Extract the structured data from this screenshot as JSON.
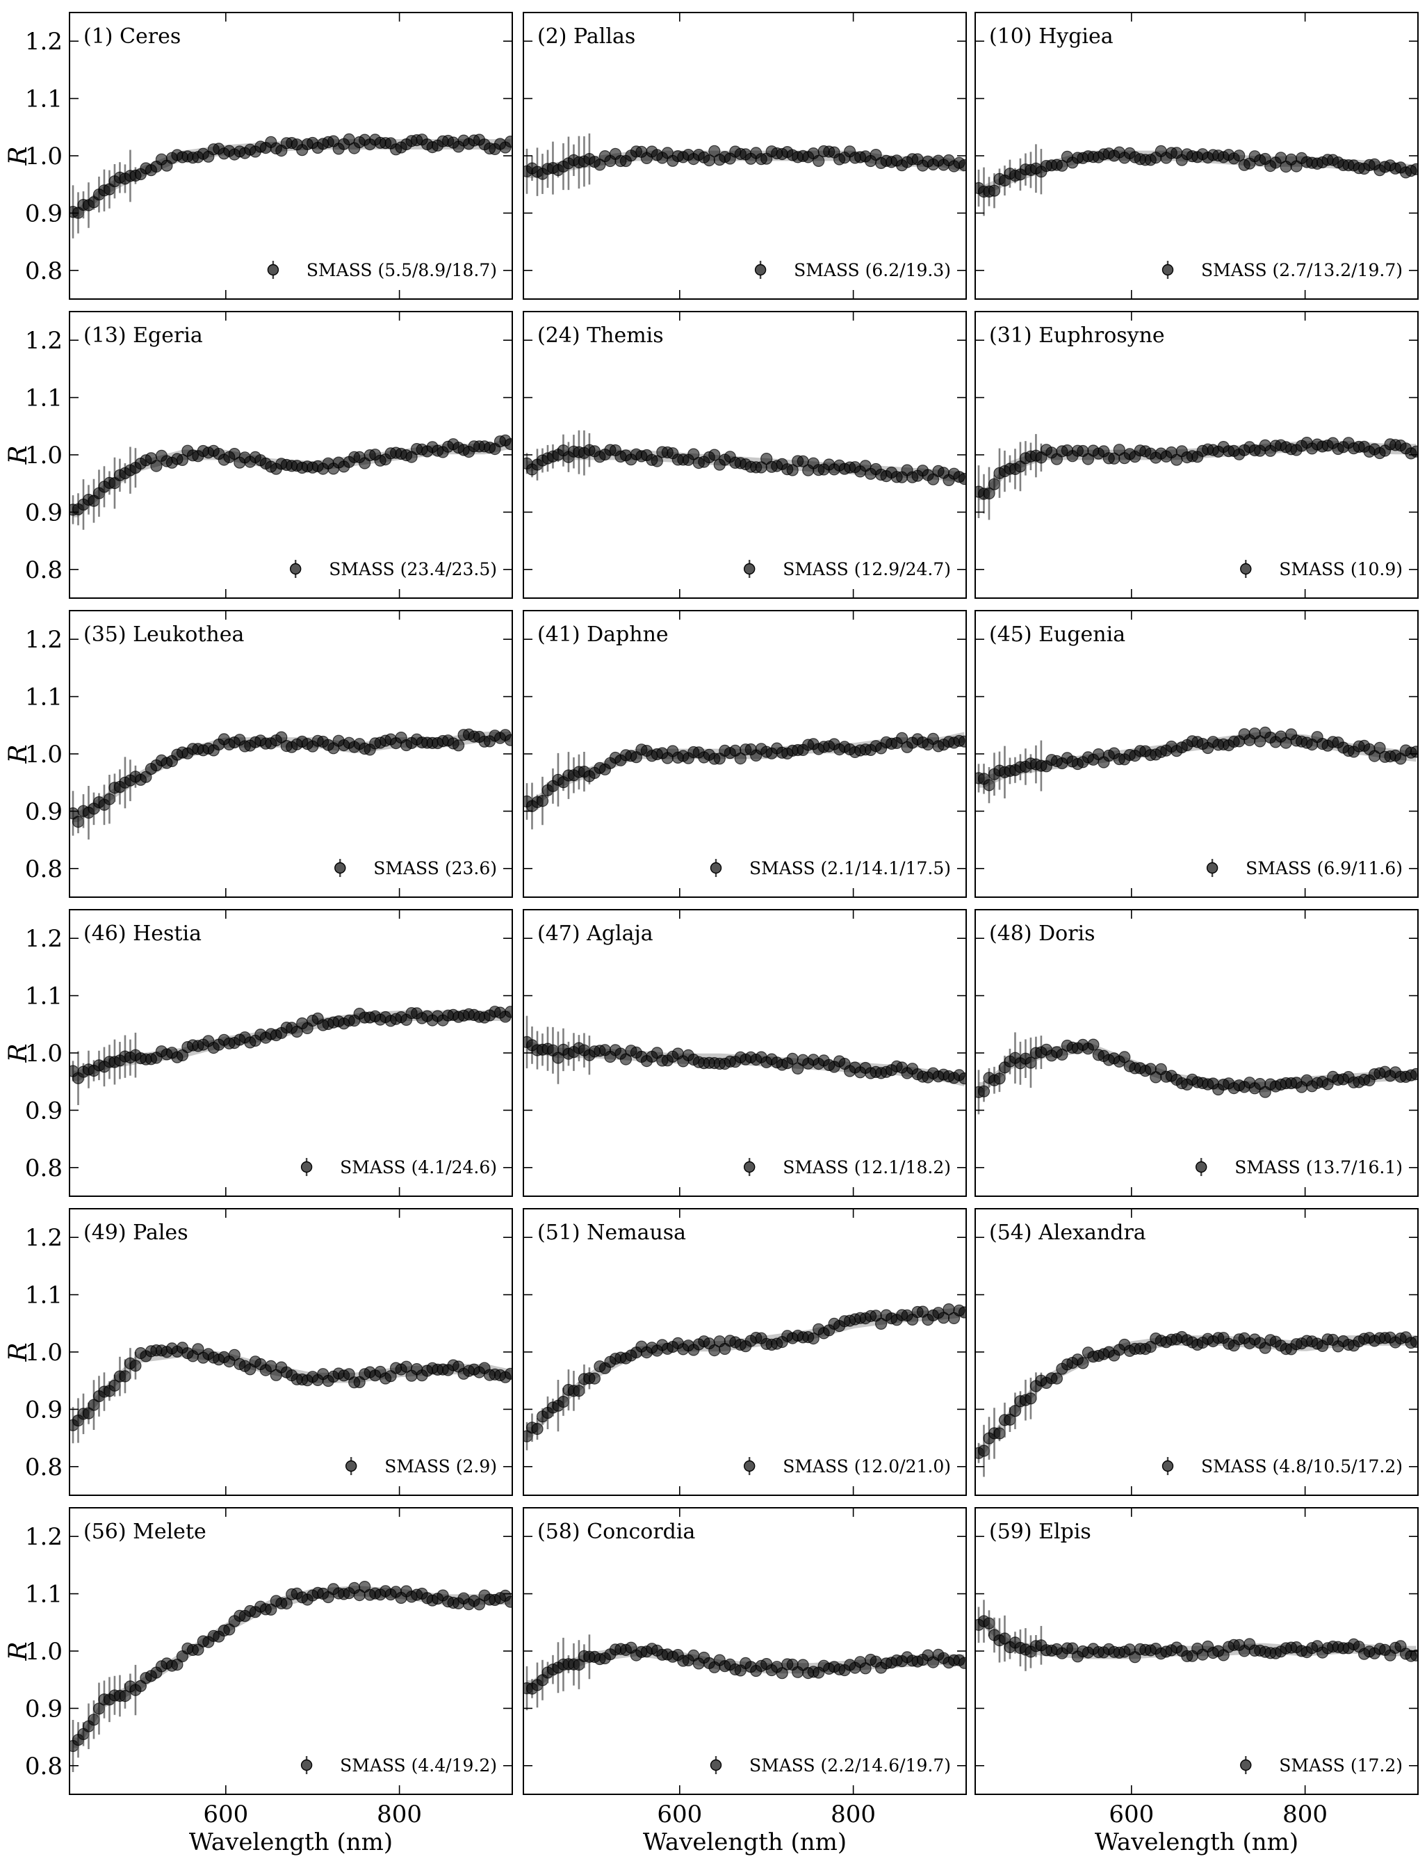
{
  "figure": {
    "ylabel": "R",
    "xlabel": "Wavelength (nm)",
    "layout": "6 rows x 3 columns",
    "colors": {
      "points": "#3a3a3a",
      "band": "#9a9a9a",
      "errorbars": "#555555"
    }
  },
  "chart_data": [
    {
      "type": "scatter",
      "title": "(1) Ceres",
      "legend": "SMASS (5.5/8.9/18.7)",
      "legend_position": "bottom-right",
      "xlim": [
        420,
        930
      ],
      "ylim": [
        0.75,
        1.25
      ],
      "xticks": [
        600,
        800
      ],
      "yticks": [
        0.8,
        0.9,
        1.0,
        1.1,
        1.2
      ],
      "x": [
        430,
        460,
        500,
        550,
        600,
        650,
        700,
        750,
        800,
        850,
        900,
        930
      ],
      "y": [
        0.9,
        0.94,
        0.97,
        1.0,
        1.01,
        1.015,
        1.02,
        1.02,
        1.02,
        1.02,
        1.02,
        1.02
      ]
    },
    {
      "type": "scatter",
      "title": "(2) Pallas",
      "legend": "SMASS (6.2/19.3)",
      "legend_position": "bottom-right",
      "xlim": [
        420,
        930
      ],
      "ylim": [
        0.75,
        1.25
      ],
      "xticks": [
        600,
        800
      ],
      "yticks": [
        0.8,
        0.9,
        1.0,
        1.1,
        1.2
      ],
      "x": [
        430,
        460,
        500,
        550,
        600,
        650,
        700,
        750,
        800,
        850,
        900,
        930
      ],
      "y": [
        0.97,
        0.98,
        0.99,
        1.0,
        1.0,
        1.0,
        1.0,
        1.0,
        1.0,
        0.99,
        0.99,
        0.98
      ]
    },
    {
      "type": "scatter",
      "title": "(10) Hygiea",
      "legend": "SMASS (2.7/13.2/19.7)",
      "legend_position": "bottom-right",
      "xlim": [
        420,
        930
      ],
      "ylim": [
        0.75,
        1.25
      ],
      "xticks": [
        600,
        800
      ],
      "yticks": [
        0.8,
        0.9,
        1.0,
        1.1,
        1.2
      ],
      "x": [
        430,
        460,
        500,
        550,
        600,
        650,
        700,
        750,
        800,
        850,
        900,
        930
      ],
      "y": [
        0.94,
        0.96,
        0.98,
        1.0,
        1.0,
        1.0,
        0.995,
        0.99,
        0.99,
        0.985,
        0.98,
        0.975
      ]
    },
    {
      "type": "scatter",
      "title": "(13) Egeria",
      "legend": "SMASS (23.4/23.5)",
      "legend_position": "bottom-right",
      "xlim": [
        420,
        930
      ],
      "ylim": [
        0.75,
        1.25
      ],
      "xticks": [
        600,
        800
      ],
      "yticks": [
        0.8,
        0.9,
        1.0,
        1.1,
        1.2
      ],
      "x": [
        430,
        460,
        500,
        550,
        600,
        650,
        700,
        750,
        800,
        850,
        900,
        930
      ],
      "y": [
        0.9,
        0.94,
        0.98,
        1.0,
        1.0,
        0.985,
        0.98,
        0.99,
        1.0,
        1.01,
        1.01,
        1.02
      ]
    },
    {
      "type": "scatter",
      "title": "(24) Themis",
      "legend": "SMASS (12.9/24.7)",
      "legend_position": "bottom-right",
      "xlim": [
        420,
        930
      ],
      "ylim": [
        0.75,
        1.25
      ],
      "xticks": [
        600,
        800
      ],
      "yticks": [
        0.8,
        0.9,
        1.0,
        1.1,
        1.2
      ],
      "x": [
        430,
        460,
        500,
        550,
        600,
        650,
        700,
        750,
        800,
        850,
        900,
        930
      ],
      "y": [
        0.98,
        1.0,
        1.0,
        1.0,
        0.995,
        0.99,
        0.985,
        0.98,
        0.975,
        0.97,
        0.965,
        0.96
      ]
    },
    {
      "type": "scatter",
      "title": "(31) Euphrosyne",
      "legend": "SMASS (10.9)",
      "legend_position": "bottom-right",
      "xlim": [
        420,
        930
      ],
      "ylim": [
        0.75,
        1.25
      ],
      "xticks": [
        600,
        800
      ],
      "yticks": [
        0.8,
        0.9,
        1.0,
        1.1,
        1.2
      ],
      "x": [
        430,
        460,
        500,
        550,
        600,
        650,
        700,
        750,
        800,
        850,
        900,
        930
      ],
      "y": [
        0.93,
        0.98,
        1.0,
        1.0,
        1.0,
        1.0,
        1.005,
        1.01,
        1.015,
        1.015,
        1.01,
        1.01
      ]
    },
    {
      "type": "scatter",
      "title": "(35) Leukothea",
      "legend": "SMASS (23.6)",
      "legend_position": "bottom-right",
      "xlim": [
        420,
        930
      ],
      "ylim": [
        0.75,
        1.25
      ],
      "xticks": [
        600,
        800
      ],
      "yticks": [
        0.8,
        0.9,
        1.0,
        1.1,
        1.2
      ],
      "x": [
        430,
        460,
        500,
        550,
        600,
        650,
        700,
        750,
        800,
        850,
        900,
        930
      ],
      "y": [
        0.89,
        0.92,
        0.96,
        1.0,
        1.02,
        1.02,
        1.02,
        1.01,
        1.02,
        1.02,
        1.03,
        1.03
      ]
    },
    {
      "type": "scatter",
      "title": "(41) Daphne",
      "legend": "SMASS (2.1/14.1/17.5)",
      "legend_position": "bottom-right",
      "xlim": [
        420,
        930
      ],
      "ylim": [
        0.75,
        1.25
      ],
      "xticks": [
        600,
        800
      ],
      "yticks": [
        0.8,
        0.9,
        1.0,
        1.1,
        1.2
      ],
      "x": [
        430,
        460,
        500,
        550,
        600,
        650,
        700,
        750,
        800,
        850,
        900,
        930
      ],
      "y": [
        0.91,
        0.95,
        0.97,
        1.0,
        1.0,
        1.0,
        1.0,
        1.01,
        1.01,
        1.02,
        1.02,
        1.03
      ]
    },
    {
      "type": "scatter",
      "title": "(45) Eugenia",
      "legend": "SMASS (6.9/11.6)",
      "legend_position": "bottom-right",
      "xlim": [
        420,
        930
      ],
      "ylim": [
        0.75,
        1.25
      ],
      "xticks": [
        600,
        800
      ],
      "yticks": [
        0.8,
        0.9,
        1.0,
        1.1,
        1.2
      ],
      "x": [
        430,
        460,
        500,
        550,
        600,
        650,
        700,
        750,
        800,
        850,
        900,
        930
      ],
      "y": [
        0.95,
        0.97,
        0.98,
        0.99,
        1.0,
        1.01,
        1.02,
        1.03,
        1.025,
        1.01,
        1.0,
        0.995
      ]
    },
    {
      "type": "scatter",
      "title": "(46) Hestia",
      "legend": "SMASS (4.1/24.6)",
      "legend_position": "bottom-right",
      "xlim": [
        420,
        930
      ],
      "ylim": [
        0.75,
        1.25
      ],
      "xticks": [
        600,
        800
      ],
      "yticks": [
        0.8,
        0.9,
        1.0,
        1.1,
        1.2
      ],
      "x": [
        430,
        460,
        500,
        550,
        600,
        650,
        700,
        750,
        800,
        850,
        900,
        930
      ],
      "y": [
        0.96,
        0.98,
        0.99,
        1.0,
        1.02,
        1.03,
        1.05,
        1.06,
        1.065,
        1.065,
        1.065,
        1.065
      ]
    },
    {
      "type": "scatter",
      "title": "(47) Aglaja",
      "legend": "SMASS (12.1/18.2)",
      "legend_position": "bottom-right",
      "xlim": [
        420,
        930
      ],
      "ylim": [
        0.75,
        1.25
      ],
      "xticks": [
        600,
        800
      ],
      "yticks": [
        0.8,
        0.9,
        1.0,
        1.1,
        1.2
      ],
      "x": [
        430,
        460,
        500,
        550,
        600,
        650,
        700,
        750,
        800,
        850,
        900,
        930
      ],
      "y": [
        1.01,
        1.0,
        1.0,
        0.995,
        0.99,
        0.99,
        0.985,
        0.98,
        0.975,
        0.97,
        0.96,
        0.95
      ]
    },
    {
      "type": "scatter",
      "title": "(48) Doris",
      "legend": "SMASS (13.7/16.1)",
      "legend_position": "bottom-right",
      "xlim": [
        420,
        930
      ],
      "ylim": [
        0.75,
        1.25
      ],
      "xticks": [
        600,
        800
      ],
      "yticks": [
        0.8,
        0.9,
        1.0,
        1.1,
        1.2
      ],
      "x": [
        430,
        460,
        500,
        550,
        600,
        650,
        700,
        750,
        800,
        850,
        900,
        930
      ],
      "y": [
        0.94,
        0.98,
        1.0,
        1.01,
        0.98,
        0.955,
        0.945,
        0.94,
        0.95,
        0.955,
        0.96,
        0.96
      ]
    },
    {
      "type": "scatter",
      "title": "(49) Pales",
      "legend": "SMASS (2.9)",
      "legend_position": "bottom-right",
      "xlim": [
        420,
        930
      ],
      "ylim": [
        0.75,
        1.25
      ],
      "xticks": [
        600,
        800
      ],
      "yticks": [
        0.8,
        0.9,
        1.0,
        1.1,
        1.2
      ],
      "x": [
        430,
        460,
        500,
        550,
        600,
        650,
        700,
        750,
        800,
        850,
        900,
        930
      ],
      "y": [
        0.88,
        0.93,
        0.99,
        1.0,
        0.99,
        0.97,
        0.955,
        0.955,
        0.965,
        0.97,
        0.97,
        0.96
      ]
    },
    {
      "type": "scatter",
      "title": "(51) Nemausa",
      "legend": "SMASS (12.0/21.0)",
      "legend_position": "bottom-right",
      "xlim": [
        420,
        930
      ],
      "ylim": [
        0.75,
        1.25
      ],
      "xticks": [
        600,
        800
      ],
      "yticks": [
        0.8,
        0.9,
        1.0,
        1.1,
        1.2
      ],
      "x": [
        430,
        460,
        500,
        550,
        600,
        650,
        700,
        750,
        800,
        850,
        900,
        930
      ],
      "y": [
        0.86,
        0.91,
        0.96,
        1.0,
        1.01,
        1.01,
        1.02,
        1.03,
        1.05,
        1.06,
        1.065,
        1.07
      ]
    },
    {
      "type": "scatter",
      "title": "(54) Alexandra",
      "legend": "SMASS (4.8/10.5/17.2)",
      "legend_position": "bottom-right",
      "xlim": [
        420,
        930
      ],
      "ylim": [
        0.75,
        1.25
      ],
      "xticks": [
        600,
        800
      ],
      "yticks": [
        0.8,
        0.9,
        1.0,
        1.1,
        1.2
      ],
      "x": [
        430,
        460,
        500,
        550,
        600,
        650,
        700,
        750,
        800,
        850,
        900,
        930
      ],
      "y": [
        0.83,
        0.89,
        0.95,
        0.99,
        1.01,
        1.02,
        1.02,
        1.015,
        1.01,
        1.02,
        1.02,
        1.02
      ]
    },
    {
      "type": "scatter",
      "title": "(56) Melete",
      "legend": "SMASS (4.4/19.2)",
      "legend_position": "bottom-right",
      "xlim": [
        420,
        930
      ],
      "ylim": [
        0.75,
        1.25
      ],
      "xticks": [
        600,
        800
      ],
      "yticks": [
        0.8,
        0.9,
        1.0,
        1.1,
        1.2
      ],
      "x": [
        430,
        460,
        500,
        550,
        600,
        650,
        700,
        750,
        800,
        850,
        900,
        930
      ],
      "y": [
        0.84,
        0.91,
        0.94,
        0.99,
        1.04,
        1.08,
        1.1,
        1.105,
        1.1,
        1.09,
        1.09,
        1.09
      ]
    },
    {
      "type": "scatter",
      "title": "(58) Concordia",
      "legend": "SMASS (2.2/14.6/19.7)",
      "legend_position": "bottom-right",
      "xlim": [
        420,
        930
      ],
      "ylim": [
        0.75,
        1.25
      ],
      "xticks": [
        600,
        800
      ],
      "yticks": [
        0.8,
        0.9,
        1.0,
        1.1,
        1.2
      ],
      "x": [
        430,
        460,
        500,
        550,
        600,
        650,
        700,
        750,
        800,
        850,
        900,
        930
      ],
      "y": [
        0.94,
        0.97,
        0.99,
        1.0,
        0.99,
        0.975,
        0.97,
        0.97,
        0.975,
        0.98,
        0.985,
        0.985
      ]
    },
    {
      "type": "scatter",
      "title": "(59) Elpis",
      "legend": "SMASS (17.2)",
      "legend_position": "bottom-right",
      "xlim": [
        420,
        930
      ],
      "ylim": [
        0.75,
        1.25
      ],
      "xticks": [
        600,
        800
      ],
      "yticks": [
        0.8,
        0.9,
        1.0,
        1.1,
        1.2
      ],
      "x": [
        430,
        460,
        500,
        550,
        600,
        650,
        700,
        750,
        800,
        850,
        900,
        930
      ],
      "y": [
        1.05,
        1.01,
        1.0,
        0.995,
        0.995,
        1.0,
        1.0,
        1.005,
        1.0,
        1.005,
        1.0,
        1.0
      ]
    }
  ]
}
